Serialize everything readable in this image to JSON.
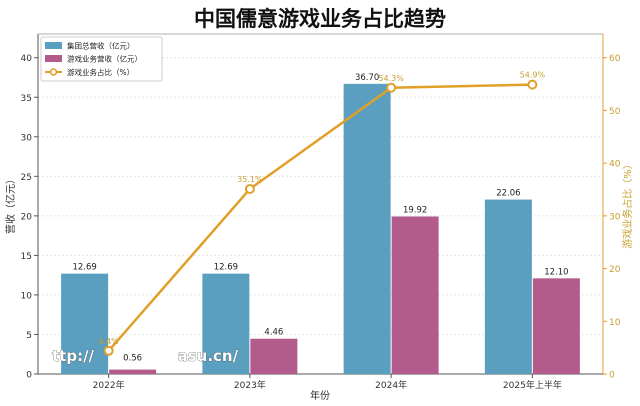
{
  "chart_data": {
    "type": "bar+line",
    "title": "中国儒意游戏业务占比趋势",
    "categories": [
      "2022年",
      "2023年",
      "2024年",
      "2025年上半年"
    ],
    "series": [
      {
        "name": "集团总营收（亿元）",
        "kind": "bar",
        "axis": "left",
        "values": [
          12.69,
          12.69,
          36.7,
          22.06
        ],
        "labels": [
          "12.69",
          "12.69",
          "36.70",
          "22.06"
        ]
      },
      {
        "name": "游戏业务营收（亿元）",
        "kind": "bar",
        "axis": "left",
        "values": [
          0.56,
          4.46,
          19.92,
          12.1
        ],
        "labels": [
          "0.56",
          "4.46",
          "19.92",
          "12.10"
        ]
      },
      {
        "name": "游戏业务占比（%）",
        "kind": "line",
        "axis": "right",
        "values": [
          4.4,
          35.1,
          54.3,
          54.9
        ],
        "labels": [
          "4.4%",
          "35.1%",
          "54.3%",
          "54.9%"
        ]
      }
    ],
    "xlabel": "年份",
    "ylabel": "营收（亿元）",
    "y2label": "游戏业务占比（%）",
    "ylim": [
      0,
      43
    ],
    "y2lim": [
      0,
      64.5
    ],
    "yticks": [
      0,
      5,
      10,
      15,
      20,
      25,
      30,
      35,
      40
    ],
    "y2ticks": [
      0,
      10,
      20,
      30,
      40,
      50,
      60
    ],
    "grid": true,
    "legend": "top-left",
    "colors": {
      "total": "#5a9fbf",
      "game": "#b35c8c",
      "ratio": "#e0a028",
      "ratio_text": "#c8a030",
      "axis_text": "#333333",
      "grid": "#e6e6e6"
    }
  },
  "watermark": "ttp://                asu.cn/"
}
